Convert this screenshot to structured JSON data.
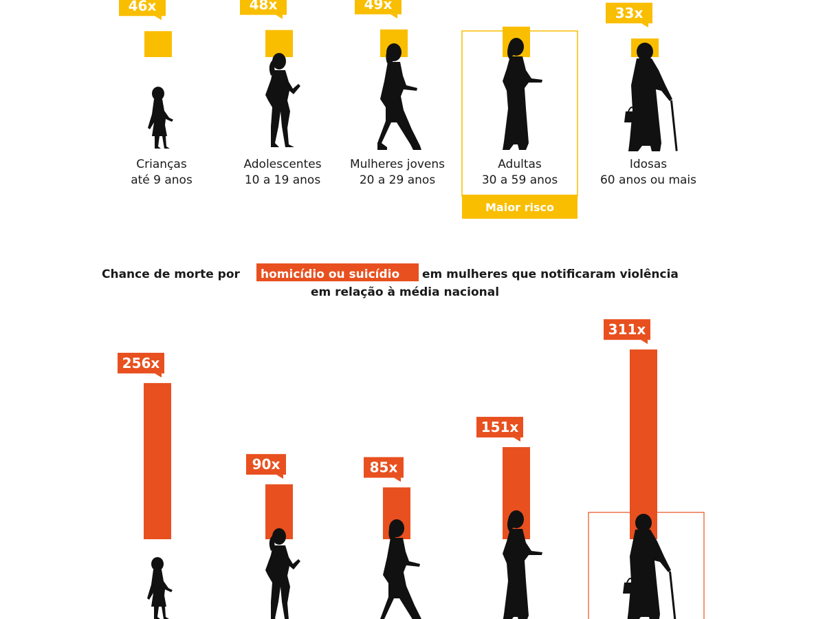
{
  "colors": {
    "yellow": "#F9BE00",
    "orange": "#E8501F",
    "silhouette": "#111111"
  },
  "chart_data": [
    {
      "type": "bar",
      "categories": [
        {
          "line1": "Crianças",
          "line2": "até 9 anos",
          "figure": "child-silhouette-icon"
        },
        {
          "line1": "Adolescentes",
          "line2": "10 a 19 anos",
          "figure": "teen-girl-silhouette-icon"
        },
        {
          "line1": "Mulheres jovens",
          "line2": "20 a 29 anos",
          "figure": "young-woman-silhouette-icon"
        },
        {
          "line1": "Adultas",
          "line2": "30 a 59 anos",
          "figure": "adult-woman-silhouette-icon"
        },
        {
          "line1": "Idosas",
          "line2": "60 anos ou mais",
          "figure": "elderly-woman-silhouette-icon"
        }
      ],
      "values": [
        46,
        48,
        49,
        54,
        33
      ],
      "value_labels": [
        "46x",
        "48x",
        "49x",
        "",
        "33x"
      ],
      "highlight_index": 3,
      "highlight_label": "Maior risco",
      "color": "#F9BE00"
    },
    {
      "type": "bar",
      "title_before": "Chance de morte por",
      "title_highlight": "homicídio ou suicídio",
      "title_after": "em mulheres que notificaram violência",
      "title_line2": "em relação à média nacional",
      "categories": [
        {
          "figure": "child-silhouette-icon"
        },
        {
          "figure": "teen-girl-silhouette-icon"
        },
        {
          "figure": "young-woman-silhouette-icon"
        },
        {
          "figure": "adult-woman-silhouette-icon"
        },
        {
          "figure": "elderly-woman-silhouette-icon"
        }
      ],
      "values": [
        256,
        90,
        85,
        151,
        311
      ],
      "value_labels": [
        "256x",
        "90x",
        "85x",
        "151x",
        "311x"
      ],
      "highlight_index": 4,
      "color": "#E8501F"
    }
  ]
}
